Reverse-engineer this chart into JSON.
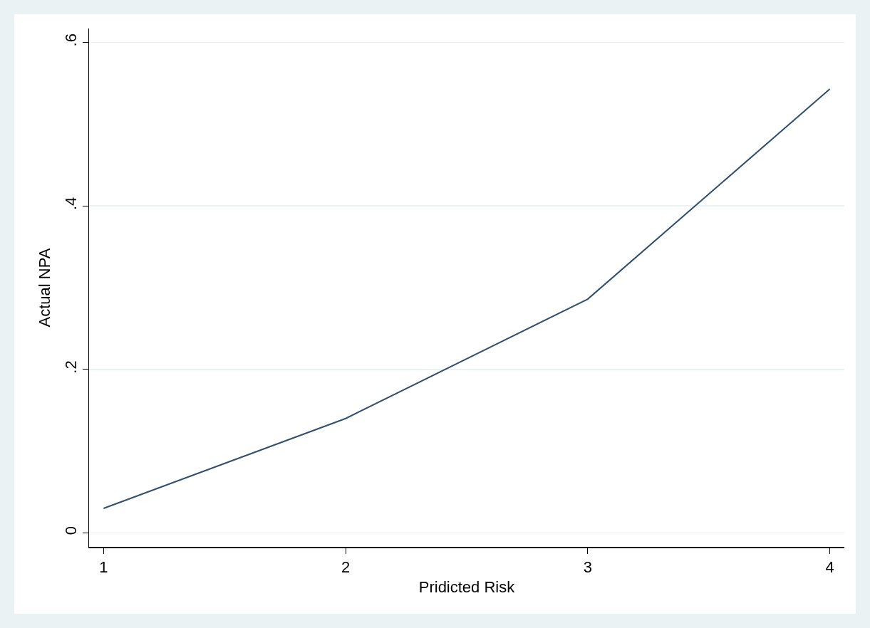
{
  "chart_data": {
    "type": "line",
    "xlabel": "Pridicted Risk",
    "ylabel": "Actual NPA",
    "x": [
      1,
      2,
      3,
      4
    ],
    "series": [
      {
        "color": "#2f4f6f",
        "values": [
          0.03,
          0.14,
          0.286,
          0.543
        ]
      }
    ],
    "xlim": [
      0.94,
      4.06
    ],
    "xticks": [
      1,
      2,
      3,
      4
    ],
    "ylim": [
      -0.017,
      0.617
    ],
    "yticks": [
      {
        "value": 0,
        "label": "0"
      },
      {
        "value": 0.2,
        "label": ".2"
      },
      {
        "value": 0.4,
        "label": ".4"
      },
      {
        "value": 0.6,
        "label": ".6"
      }
    ],
    "grid": "y",
    "marker": "none",
    "line_style": "solid"
  }
}
